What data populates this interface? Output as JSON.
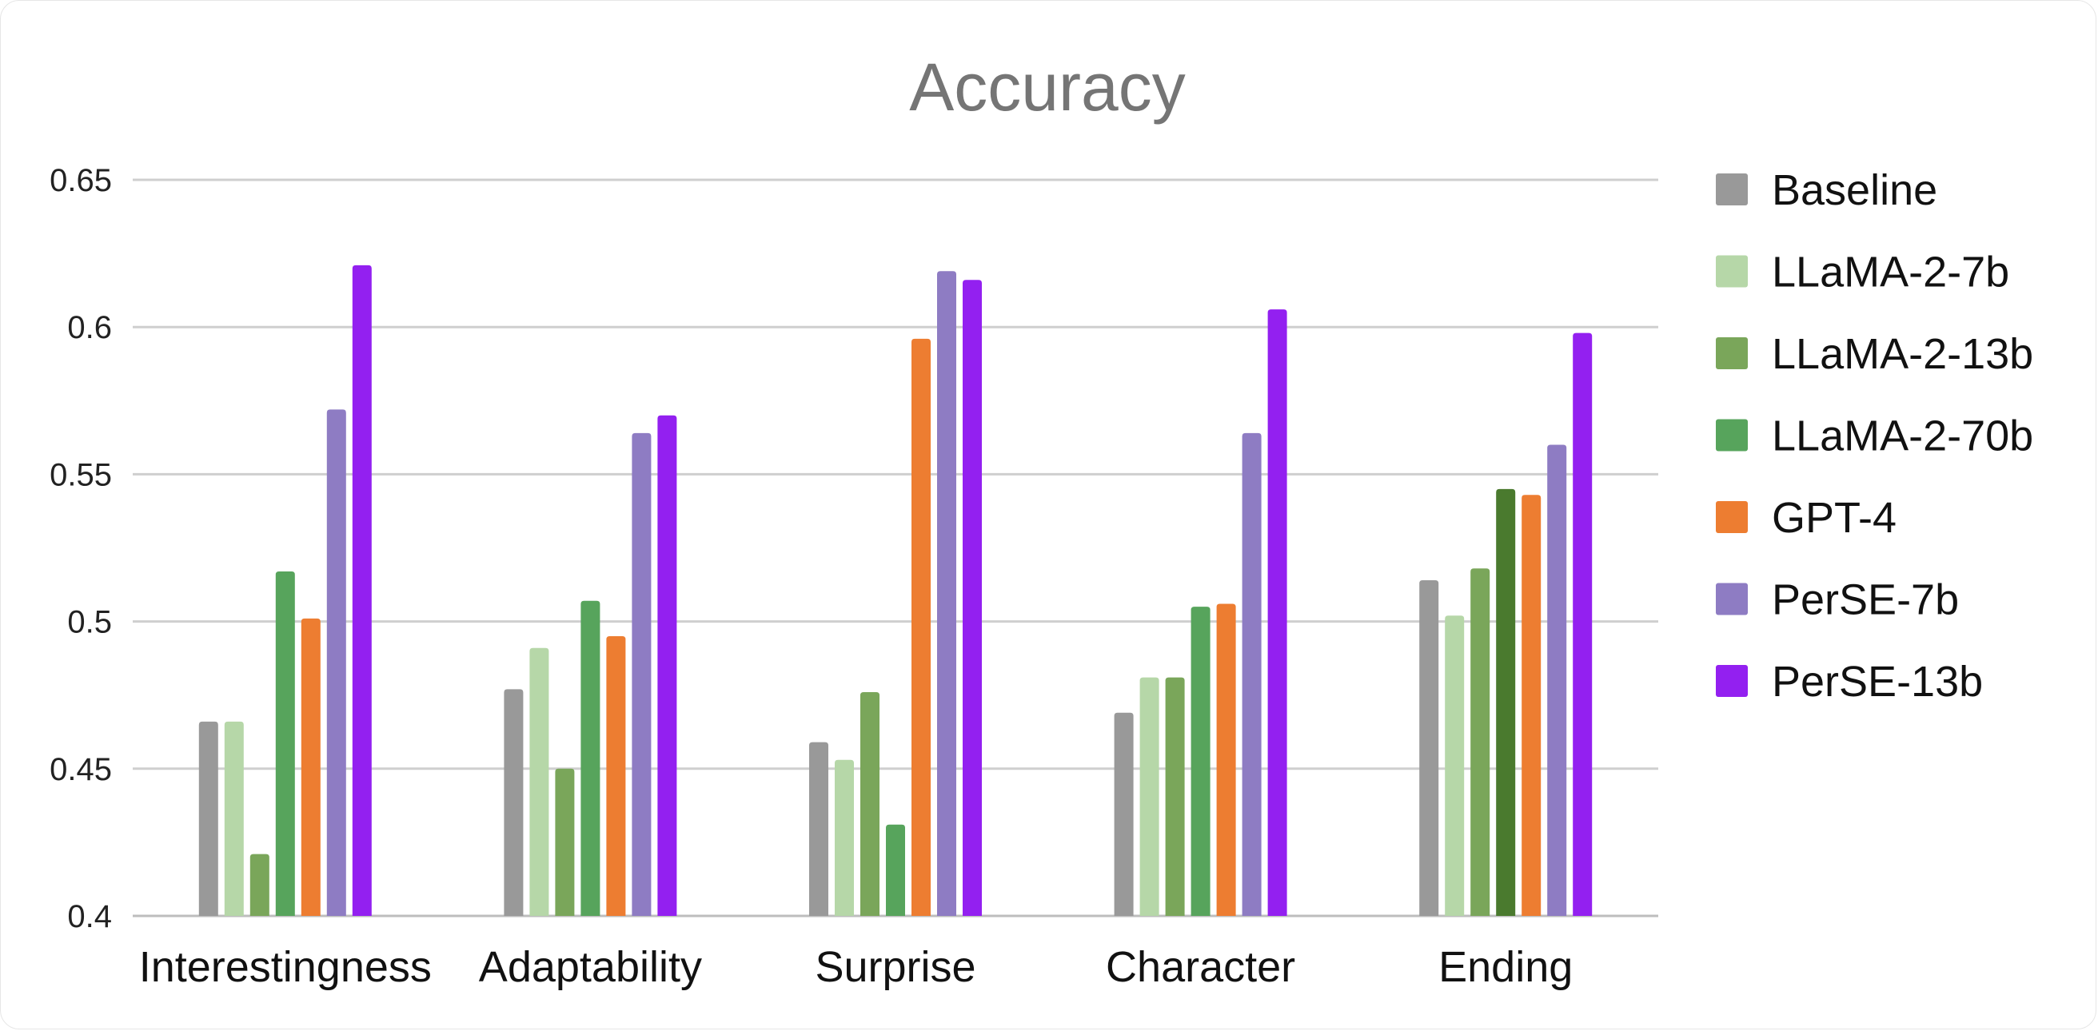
{
  "chart_data": {
    "type": "bar",
    "title": "Accuracy",
    "xlabel": "",
    "ylabel": "",
    "ylim": [
      0.4,
      0.65
    ],
    "yticks": [
      "0.4",
      "0.45",
      "0.5",
      "0.55",
      "0.6",
      "0.65"
    ],
    "grid": true,
    "legend_position": "right",
    "categories": [
      "Interestingness",
      "Adaptability",
      "Surprise",
      "Character",
      "Ending"
    ],
    "series": [
      {
        "name": "Baseline",
        "color": "#999999",
        "values": [
          0.466,
          0.477,
          0.459,
          0.469,
          0.514
        ]
      },
      {
        "name": "LLaMA-2-7b",
        "color": "#b6d7a8",
        "values": [
          0.466,
          0.491,
          0.453,
          0.481,
          0.502
        ]
      },
      {
        "name": "LLaMA-2-13b",
        "color": "#7aa65a",
        "values": [
          0.421,
          0.45,
          0.476,
          0.481,
          0.518
        ]
      },
      {
        "name": "LLaMA-2-70b",
        "color": "#57a45c",
        "values": [
          0.517,
          0.507,
          0.431,
          0.505,
          0.545
        ]
      },
      {
        "name": "GPT-4",
        "color": "#ed7d31",
        "values": [
          0.501,
          0.495,
          0.596,
          0.506,
          0.543
        ]
      },
      {
        "name": "PerSE-7b",
        "color": "#8e7cc3",
        "values": [
          0.572,
          0.564,
          0.619,
          0.564,
          0.56
        ]
      },
      {
        "name": "PerSE-13b",
        "color": "#9320f0",
        "values": [
          0.621,
          0.57,
          0.616,
          0.606,
          0.598
        ]
      }
    ],
    "bar_color_overrides": [
      {
        "series": "LLaMA-2-70b",
        "category": "Ending",
        "color": "#4a7a2e"
      }
    ]
  }
}
